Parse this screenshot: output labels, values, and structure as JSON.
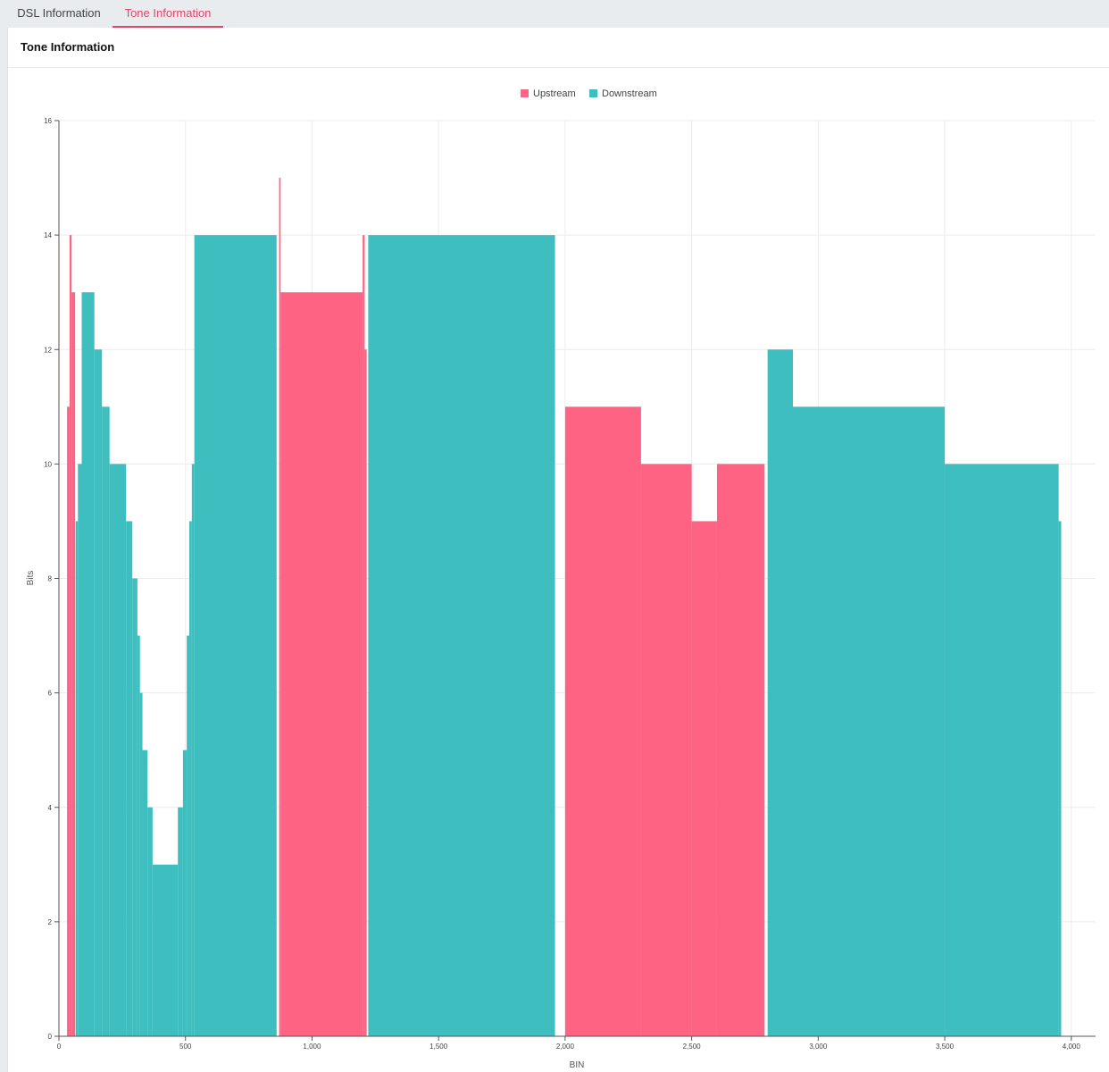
{
  "tabs": [
    {
      "label": "DSL Information",
      "active": false
    },
    {
      "label": "Tone Information",
      "active": true
    }
  ],
  "panel": {
    "title": "Tone Information"
  },
  "colors": {
    "upstream": "#ff6384",
    "downstream": "#3ebebe",
    "active_tab": "#e0476a"
  },
  "chart_data": {
    "type": "bar",
    "title": "",
    "xlabel": "BIN",
    "ylabel": "Bits",
    "xlim": [
      0,
      4096
    ],
    "ylim": [
      0,
      16
    ],
    "xticks": [
      0,
      500,
      1000,
      1500,
      2000,
      2500,
      3000,
      3500,
      4000
    ],
    "xtick_labels": [
      "0",
      "500",
      "1,000",
      "1,500",
      "2,000",
      "2,500",
      "3,000",
      "3,500",
      "4,000"
    ],
    "yticks": [
      0,
      2,
      4,
      6,
      8,
      10,
      12,
      14,
      16
    ],
    "ytick_labels": [
      "0",
      "2",
      "4",
      "6",
      "8",
      "10",
      "12",
      "14",
      "16"
    ],
    "grid": true,
    "legend_position": "top-center",
    "series": [
      {
        "name": "Upstream",
        "color": "#ff6384",
        "segments": [
          {
            "from": 32,
            "to": 42,
            "bits": 11
          },
          {
            "from": 42,
            "to": 50,
            "bits": 14
          },
          {
            "from": 50,
            "to": 64,
            "bits": 13
          },
          {
            "from": 870,
            "to": 876,
            "bits": 15
          },
          {
            "from": 876,
            "to": 1200,
            "bits": 13
          },
          {
            "from": 1200,
            "to": 1208,
            "bits": 14
          },
          {
            "from": 1208,
            "to": 1216,
            "bits": 12
          },
          {
            "from": 2000,
            "to": 2300,
            "bits": 11
          },
          {
            "from": 2300,
            "to": 2500,
            "bits": 10
          },
          {
            "from": 2500,
            "to": 2600,
            "bits": 9
          },
          {
            "from": 2600,
            "to": 2788,
            "bits": 10
          }
        ]
      },
      {
        "name": "Downstream",
        "color": "#3ebebe",
        "segments": [
          {
            "from": 66,
            "to": 75,
            "bits": 9
          },
          {
            "from": 75,
            "to": 90,
            "bits": 10
          },
          {
            "from": 90,
            "to": 140,
            "bits": 13
          },
          {
            "from": 140,
            "to": 170,
            "bits": 12
          },
          {
            "from": 170,
            "to": 200,
            "bits": 11
          },
          {
            "from": 200,
            "to": 265,
            "bits": 10
          },
          {
            "from": 265,
            "to": 290,
            "bits": 9
          },
          {
            "from": 290,
            "to": 310,
            "bits": 8
          },
          {
            "from": 310,
            "to": 320,
            "bits": 7
          },
          {
            "from": 320,
            "to": 330,
            "bits": 6
          },
          {
            "from": 330,
            "to": 350,
            "bits": 5
          },
          {
            "from": 350,
            "to": 370,
            "bits": 4
          },
          {
            "from": 370,
            "to": 470,
            "bits": 3
          },
          {
            "from": 470,
            "to": 490,
            "bits": 4
          },
          {
            "from": 490,
            "to": 505,
            "bits": 5
          },
          {
            "from": 505,
            "to": 515,
            "bits": 7
          },
          {
            "from": 515,
            "to": 525,
            "bits": 9
          },
          {
            "from": 525,
            "to": 535,
            "bits": 10
          },
          {
            "from": 535,
            "to": 860,
            "bits": 14
          },
          {
            "from": 1222,
            "to": 1960,
            "bits": 14
          },
          {
            "from": 2800,
            "to": 2900,
            "bits": 12
          },
          {
            "from": 2900,
            "to": 3500,
            "bits": 11
          },
          {
            "from": 3500,
            "to": 3950,
            "bits": 10
          },
          {
            "from": 3950,
            "to": 3960,
            "bits": 9
          }
        ]
      }
    ]
  }
}
